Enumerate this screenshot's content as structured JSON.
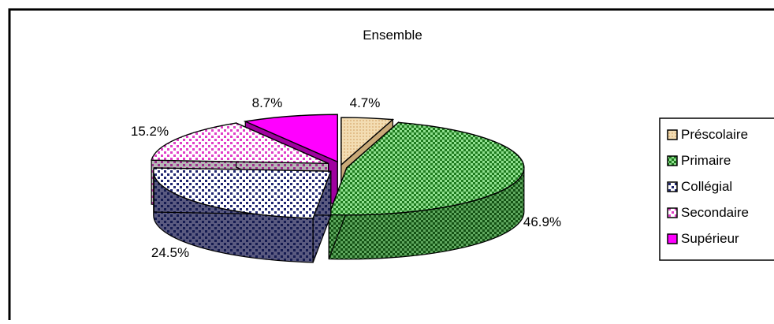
{
  "chart_data": {
    "type": "pie",
    "title": "Ensemble",
    "categories": [
      "Préscolaire",
      "Primaire",
      "Collégial",
      "Secondaire",
      "Supérieur"
    ],
    "values": [
      4.7,
      46.9,
      24.5,
      15.2,
      8.7
    ],
    "value_labels": [
      "4.7%",
      "46.9%",
      "24.5%",
      "15.2%",
      "8.7%"
    ],
    "unit": "%",
    "style": "3d-exploded",
    "legend_position": "right",
    "colors": [
      "#F2D8A8",
      "#2E8B2E",
      "#232A6E",
      "#E040C8",
      "#FF00FF"
    ],
    "pattern_colors": [
      "#E6C594",
      "#6FCF6F",
      "#FFFFFF",
      "#FFFFFF",
      "#FF00FF"
    ]
  }
}
